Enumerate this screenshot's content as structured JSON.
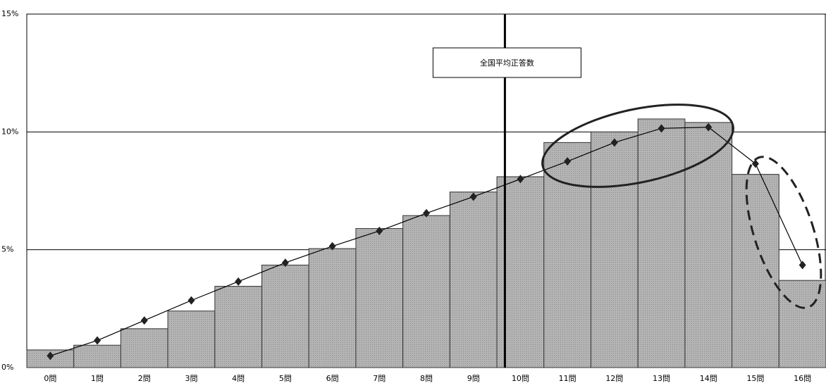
{
  "chart_data": {
    "type": "combo",
    "categories": [
      "0問",
      "1問",
      "2問",
      "3問",
      "4問",
      "5問",
      "6問",
      "7問",
      "8問",
      "9問",
      "10問",
      "11問",
      "12問",
      "13問",
      "14問",
      "15問",
      "16問"
    ],
    "series": [
      {
        "type": "bar",
        "color": "#a9a9a9",
        "values": [
          0.75,
          0.95,
          1.65,
          2.4,
          3.45,
          4.35,
          5.05,
          5.9,
          6.45,
          7.45,
          8.1,
          9.55,
          10.0,
          10.55,
          10.4,
          8.2,
          3.7
        ]
      },
      {
        "type": "line",
        "color": "#000000",
        "values": [
          0.5,
          1.15,
          2.0,
          2.85,
          3.65,
          4.45,
          5.15,
          5.8,
          6.55,
          7.25,
          8.0,
          8.75,
          9.55,
          10.15,
          10.2,
          8.65,
          4.35
        ]
      }
    ],
    "ylim": [
      0,
      15
    ],
    "yticks": [
      {
        "value": 0,
        "label": "0%"
      },
      {
        "value": 5,
        "label": "5%"
      },
      {
        "value": 10,
        "label": "10%"
      },
      {
        "value": 15,
        "label": "15%"
      }
    ],
    "grid": true,
    "annotations": [
      {
        "text": "全国平均正答数",
        "x": 9.67
      }
    ]
  }
}
